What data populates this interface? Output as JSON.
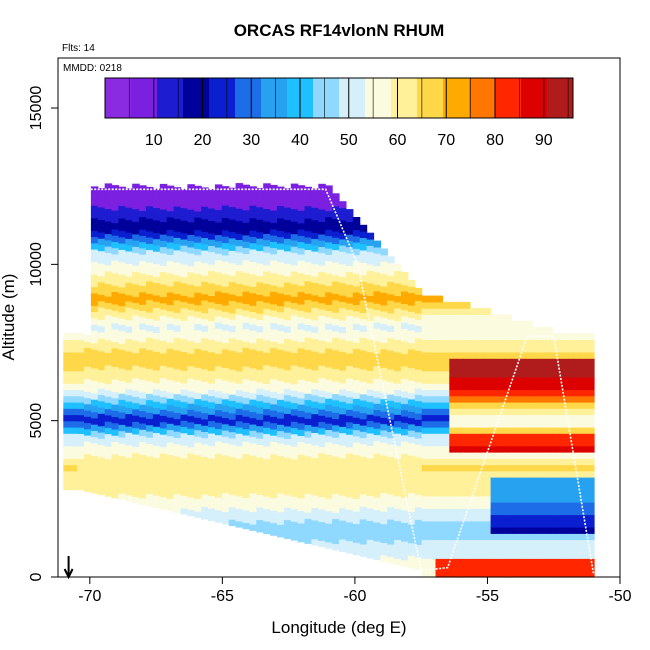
{
  "chart_data": {
    "type": "heatmap",
    "title": "ORCAS RF14vlonN RHUM",
    "subtitle_flights": "Flts: 14",
    "subtitle_date": "MMDD: 0218",
    "xlabel": "Longitude (deg E)",
    "ylabel": "Altitude (m)",
    "xlim": [
      -71.2,
      -50
    ],
    "ylim": [
      0,
      16600
    ],
    "xticks": [
      -70,
      -65,
      -60,
      -55,
      -50
    ],
    "yticks": [
      0,
      5000,
      10000,
      15000
    ],
    "colorbar": {
      "range": [
        0,
        96
      ],
      "ticks": [
        10,
        20,
        30,
        40,
        50,
        60,
        70,
        80,
        90
      ],
      "colors": [
        "#8a2be2",
        "#7b1fe0",
        "#1d1cd0",
        "#00009b",
        "#0a1fd0",
        "#1e6de8",
        "#27a2f0",
        "#1fc0ff",
        "#8fd8ff",
        "#d6f0fb",
        "#fbfbe0",
        "#fff09a",
        "#ffd84a",
        "#ffaa00",
        "#ff7700",
        "#ff2600",
        "#dd0000",
        "#b01c1c"
      ]
    },
    "flight_track": [
      {
        "lon": -70.1,
        "alt": 12400
      },
      {
        "lon": -61.1,
        "alt": 12400
      },
      {
        "lon": -59.9,
        "alt": 10000
      },
      {
        "lon": -57.5,
        "alt": 200
      },
      {
        "lon": -56.5,
        "alt": 300
      },
      {
        "lon": -53.5,
        "alt": 7700
      },
      {
        "lon": -52.5,
        "alt": 7700
      },
      {
        "lon": -51.0,
        "alt": 100
      }
    ],
    "profile_levels": [
      {
        "alt": 12000,
        "rh": 8
      },
      {
        "alt": 11000,
        "rh": 22
      },
      {
        "alt": 10400,
        "rh": 48
      },
      {
        "alt": 9500,
        "rh": 62
      },
      {
        "alt": 8900,
        "rh": 72
      },
      {
        "alt": 8000,
        "rh": 52
      },
      {
        "alt": 7000,
        "rh": 68
      },
      {
        "alt": 6000,
        "rh": 55
      },
      {
        "alt": 5000,
        "rh": 22
      },
      {
        "alt": 4500,
        "rh": 50
      },
      {
        "alt": 3500,
        "rh": 64
      },
      {
        "alt": 2500,
        "rh": 58
      },
      {
        "alt": 1500,
        "rh": 44
      },
      {
        "alt": 500,
        "rh": 55
      }
    ],
    "surface_marker_lon": -70.8
  }
}
